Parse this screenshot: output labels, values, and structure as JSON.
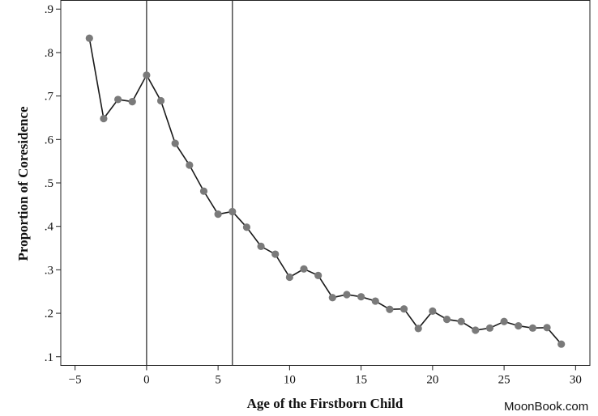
{
  "chart_data": {
    "type": "line",
    "title": "",
    "xlabel": "Age of the Firstborn Child",
    "ylabel": "Proportion of Coresidence",
    "xlim": [
      -6,
      31
    ],
    "ylim": [
      0.08,
      0.92
    ],
    "x_ticks": [
      -5,
      0,
      5,
      10,
      15,
      20,
      25,
      30
    ],
    "x_tick_labels": [
      "−5",
      "0",
      "5",
      "10",
      "15",
      "20",
      "25",
      "30"
    ],
    "y_ticks": [
      0.1,
      0.2,
      0.3,
      0.4,
      0.5,
      0.6,
      0.7,
      0.8,
      0.9
    ],
    "y_tick_labels": [
      ".1",
      ".2",
      ".3",
      ".4",
      ".5",
      ".6",
      ".7",
      ".8",
      ".9"
    ],
    "vertical_lines": [
      0,
      6
    ],
    "grid": false,
    "series": [
      {
        "x": [
          -4,
          -3,
          -2,
          -1,
          0,
          1,
          2,
          3,
          4,
          5,
          6,
          7,
          8,
          9,
          10,
          11,
          12,
          13,
          14,
          15,
          16,
          17,
          18,
          19,
          20,
          21,
          22,
          23,
          24,
          25,
          26,
          27,
          28,
          29
        ],
        "y": [
          0.833,
          0.648,
          0.692,
          0.687,
          0.748,
          0.689,
          0.591,
          0.541,
          0.481,
          0.428,
          0.434,
          0.398,
          0.354,
          0.336,
          0.283,
          0.302,
          0.287,
          0.236,
          0.243,
          0.238,
          0.228,
          0.209,
          0.21,
          0.165,
          0.205,
          0.186,
          0.181,
          0.161,
          0.166,
          0.181,
          0.171,
          0.166,
          0.167,
          0.129
        ]
      }
    ],
    "colors": {
      "line": "#1a1a1a",
      "marker": "#7a7a7a",
      "reference_line": "#333333",
      "axis": "#222222"
    }
  },
  "watermark": "MoonBook.com"
}
